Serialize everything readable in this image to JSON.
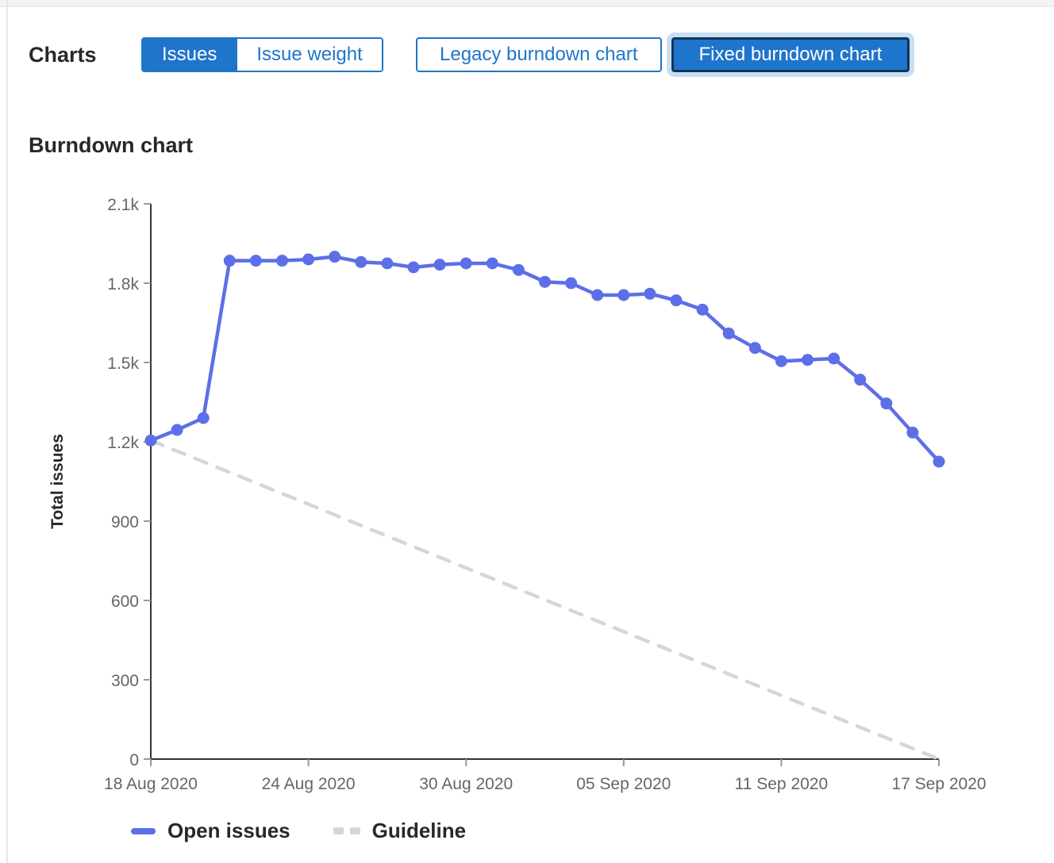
{
  "header": {
    "charts_label": "Charts",
    "issue_toggle": [
      {
        "label": "Issues",
        "selected": true
      },
      {
        "label": "Issue weight",
        "selected": false
      }
    ],
    "chart_version_buttons": [
      {
        "label": "Legacy burndown chart",
        "selected": false
      },
      {
        "label": "Fixed burndown chart",
        "selected": true
      }
    ]
  },
  "section": {
    "title": "Burndown chart"
  },
  "colors": {
    "accent_blue": "#1f75cb",
    "focus_border": "#0d355c",
    "focus_ring": "#c9def1",
    "series_blue": "#5d6fe8",
    "guideline_gray": "#d6d6d6",
    "axis_line": "#333333",
    "tick_mark": "#999999",
    "tick_text": "#666666",
    "heading_text": "#28272d"
  },
  "chart_data": {
    "type": "line",
    "title": "Burndown chart",
    "xlabel": "",
    "ylabel": "Total issues",
    "ylim": [
      0,
      2100
    ],
    "x_domain_days": [
      0,
      30
    ],
    "grid": false,
    "legend_position": "bottom",
    "y_ticks": [
      {
        "value": 0,
        "label": "0"
      },
      {
        "value": 300,
        "label": "300"
      },
      {
        "value": 600,
        "label": "600"
      },
      {
        "value": 900,
        "label": "900"
      },
      {
        "value": 1200,
        "label": "1.2k"
      },
      {
        "value": 1500,
        "label": "1.5k"
      },
      {
        "value": 1800,
        "label": "1.8k"
      },
      {
        "value": 2100,
        "label": "2.1k"
      }
    ],
    "x_ticks": [
      {
        "day": 0,
        "label": "18 Aug 2020"
      },
      {
        "day": 6,
        "label": "24 Aug 2020"
      },
      {
        "day": 12,
        "label": "30 Aug 2020"
      },
      {
        "day": 18,
        "label": "05 Sep 2020"
      },
      {
        "day": 24,
        "label": "11 Sep 2020"
      },
      {
        "day": 30,
        "label": "17 Sep 2020"
      }
    ],
    "series": [
      {
        "name": "Open issues",
        "style": "solid",
        "show_points": true,
        "color": "#5d6fe8",
        "days": [
          0,
          1,
          2,
          3,
          4,
          5,
          6,
          7,
          8,
          9,
          10,
          11,
          12,
          13,
          14,
          15,
          16,
          17,
          18,
          19,
          20,
          21,
          22,
          23,
          24,
          25,
          26,
          27,
          28,
          29,
          30
        ],
        "values": [
          1205,
          1245,
          1290,
          1885,
          1885,
          1885,
          1890,
          1900,
          1880,
          1875,
          1860,
          1870,
          1875,
          1875,
          1850,
          1805,
          1800,
          1755,
          1755,
          1760,
          1735,
          1700,
          1610,
          1555,
          1505,
          1510,
          1515,
          1435,
          1345,
          1235,
          1125
        ]
      },
      {
        "name": "Guideline",
        "style": "dashed",
        "show_points": false,
        "color": "#d6d6d6",
        "days": [
          0,
          30
        ],
        "values": [
          1205,
          0
        ]
      }
    ],
    "legend": [
      {
        "label": "Open issues",
        "swatch": "solid-blue"
      },
      {
        "label": "Guideline",
        "swatch": "dashed-gray"
      }
    ]
  }
}
